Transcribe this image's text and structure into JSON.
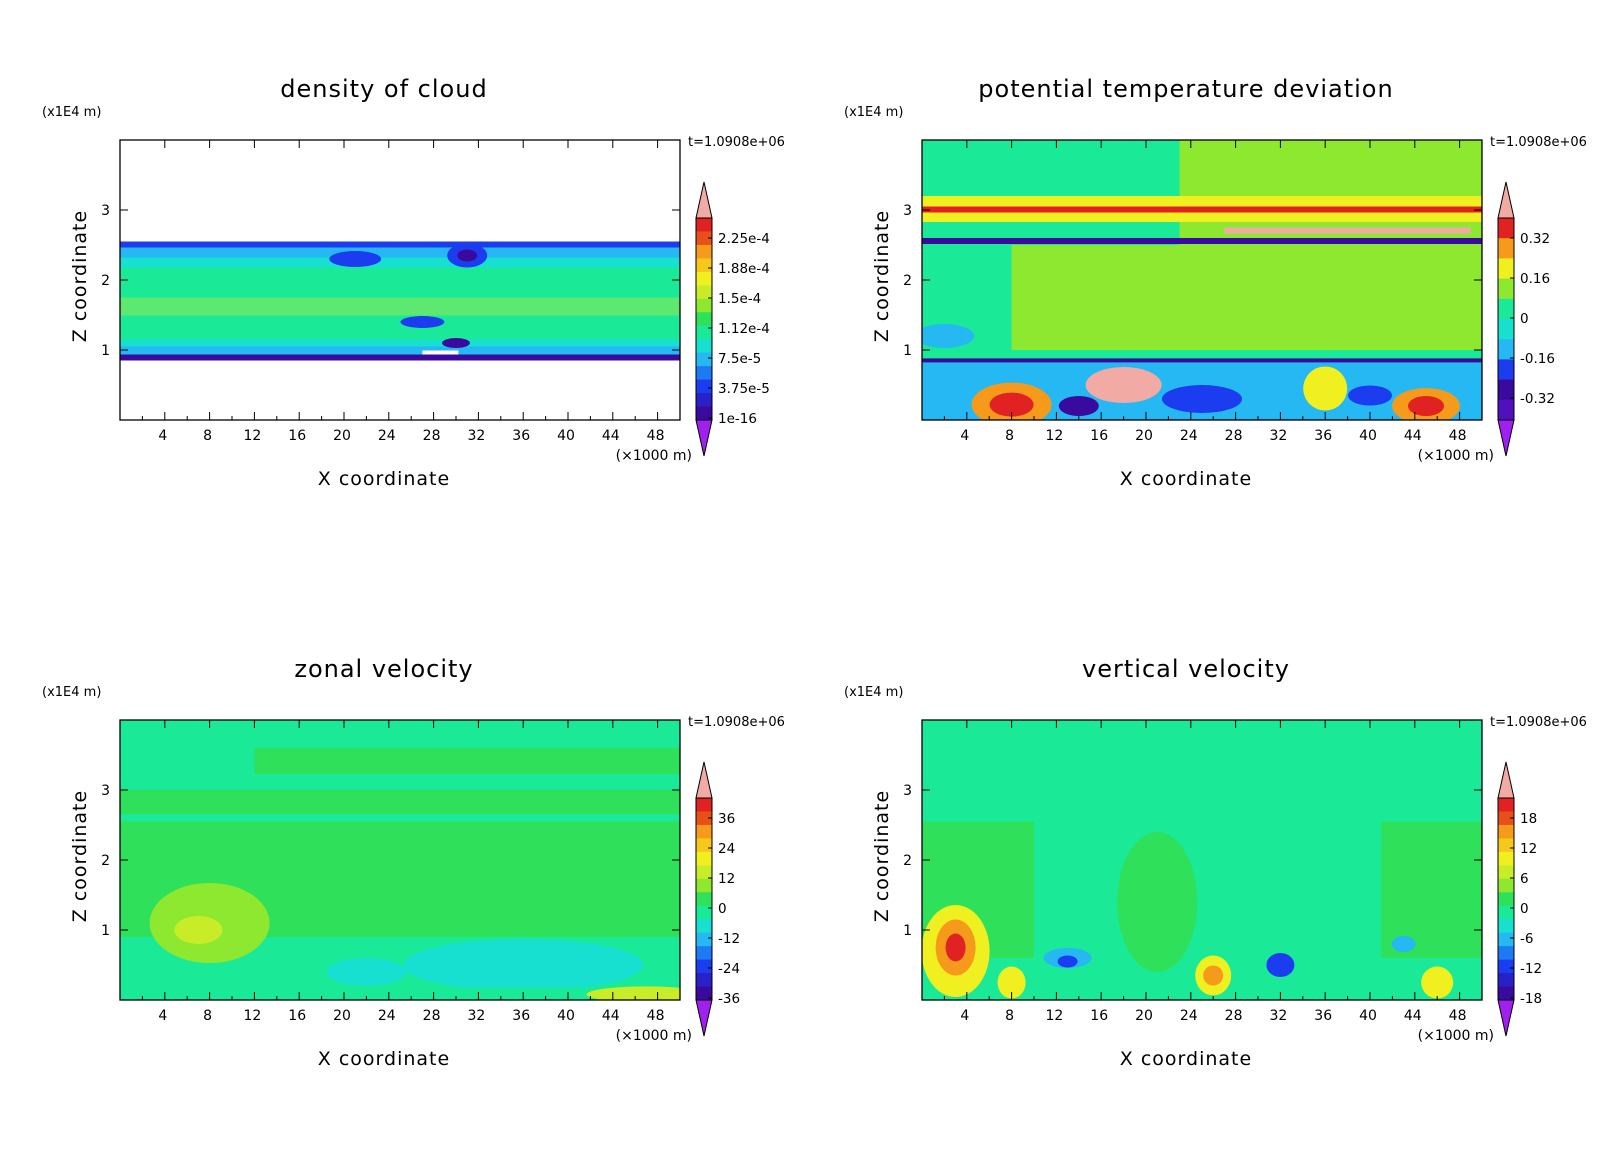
{
  "figure": {
    "time_label": "t=1.0908e+06"
  },
  "chart_data": [
    {
      "type": "heatmap",
      "title": "density of cloud",
      "xlabel": "X coordinate",
      "ylabel": "Z coordinate",
      "x_unit": "(×1000 m)",
      "y_unit": "(x1E4 m)",
      "x_ticks": [
        4,
        8,
        12,
        16,
        20,
        24,
        28,
        32,
        36,
        40,
        44,
        48
      ],
      "y_ticks": [
        1,
        2,
        3
      ],
      "xlim": [
        0,
        50
      ],
      "ylim": [
        0,
        4
      ],
      "time_label": "t=1.0908e+06",
      "colorbar_labels": [
        "2.25e-4",
        "1.88e-4",
        "1.5e-4",
        "1.12e-4",
        "7.5e-5",
        "3.75e-5",
        "1e-16"
      ],
      "cloud_layer_z": [
        0.85,
        2.55
      ]
    },
    {
      "type": "heatmap",
      "title": "potential temperature deviation",
      "xlabel": "X coordinate",
      "ylabel": "Z coordinate",
      "x_unit": "(×1000 m)",
      "y_unit": "(x1E4 m)",
      "x_ticks": [
        4,
        8,
        12,
        16,
        20,
        24,
        28,
        32,
        36,
        40,
        44,
        48
      ],
      "y_ticks": [
        1,
        2,
        3
      ],
      "xlim": [
        0,
        50
      ],
      "ylim": [
        0,
        4
      ],
      "time_label": "t=1.0908e+06",
      "colorbar_labels": [
        "0.32",
        "0.16",
        "0",
        "-0.16",
        "-0.32"
      ]
    },
    {
      "type": "heatmap",
      "title": "zonal velocity",
      "xlabel": "X coordinate",
      "ylabel": "Z coordinate",
      "x_unit": "(×1000 m)",
      "y_unit": "(x1E4 m)",
      "x_ticks": [
        4,
        8,
        12,
        16,
        20,
        24,
        28,
        32,
        36,
        40,
        44,
        48
      ],
      "y_ticks": [
        1,
        2,
        3
      ],
      "xlim": [
        0,
        50
      ],
      "ylim": [
        0,
        4
      ],
      "time_label": "t=1.0908e+06",
      "colorbar_labels": [
        "36",
        "24",
        "12",
        "0",
        "-12",
        "-24",
        "-36"
      ]
    },
    {
      "type": "heatmap",
      "title": "vertical velocity",
      "xlabel": "X coordinate",
      "ylabel": "Z coordinate",
      "x_unit": "(×1000 m)",
      "y_unit": "(x1E4 m)",
      "x_ticks": [
        4,
        8,
        12,
        16,
        20,
        24,
        28,
        32,
        36,
        40,
        44,
        48
      ],
      "y_ticks": [
        1,
        2,
        3
      ],
      "xlim": [
        0,
        50
      ],
      "ylim": [
        0,
        4
      ],
      "time_label": "t=1.0908e+06",
      "colorbar_labels": [
        "18",
        "12",
        "6",
        "0",
        "-6",
        "-12",
        "-18"
      ]
    }
  ],
  "colors": {
    "dark_purple": "#3a0a9e",
    "blue": "#1c3cf0",
    "light_blue": "#25b8f2",
    "cyan": "#18e0d0",
    "mint": "#1aea98",
    "green": "#2ee05a",
    "light_green": "#8fe830",
    "yellow": "#f0f020",
    "orange": "#f59a1a",
    "red": "#e02222",
    "pink": "#f2aaa4",
    "violet": "#a020f0"
  }
}
